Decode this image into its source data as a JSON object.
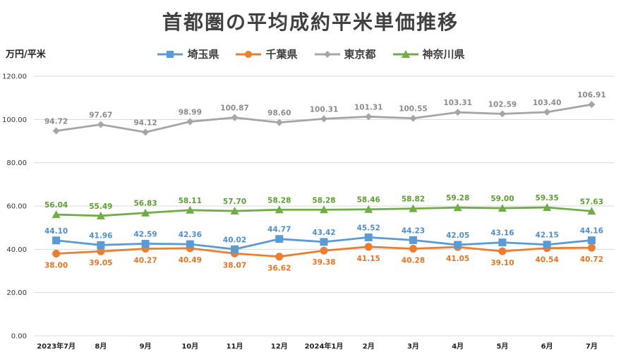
{
  "chart_data": {
    "type": "line",
    "title": "首都圏の平均成約平米単価推移",
    "ylabel": "万円/平米",
    "xlabel": "",
    "ylim": [
      0,
      120
    ],
    "yticks": [
      "0.00",
      "20.00",
      "40.00",
      "60.00",
      "80.00",
      "100.00",
      "120.00"
    ],
    "grid": "horizontal",
    "legend": "top",
    "categories": [
      "2023年7月",
      "8月",
      "9月",
      "10月",
      "11月",
      "12月",
      "2024年1月",
      "2月",
      "3月",
      "4月",
      "5月",
      "6月",
      "7月"
    ],
    "series": [
      {
        "name": "埼玉県",
        "color": "#5B9BD5",
        "marker": "square",
        "label_pos": "above",
        "values": [
          44.1,
          41.96,
          42.59,
          42.36,
          40.02,
          44.77,
          43.42,
          45.52,
          44.23,
          42.05,
          43.16,
          42.15,
          44.16
        ],
        "labels": [
          "44.10",
          "41.96",
          "42.59",
          "42.36",
          "40.02",
          "44.77",
          "43.42",
          "45.52",
          "44.23",
          "42.05",
          "43.16",
          "42.15",
          "44.16"
        ]
      },
      {
        "name": "千葉県",
        "color": "#ED7D31",
        "marker": "circle",
        "label_pos": "below",
        "values": [
          38.0,
          39.05,
          40.27,
          40.49,
          38.07,
          36.62,
          39.38,
          41.15,
          40.28,
          41.05,
          39.1,
          40.54,
          40.72
        ],
        "labels": [
          "38.00",
          "39.05",
          "40.27",
          "40.49",
          "38.07",
          "36.62",
          "39.38",
          "41.15",
          "40.28",
          "41.05",
          "39.10",
          "40.54",
          "40.72"
        ]
      },
      {
        "name": "東京都",
        "color": "#A5A5A5",
        "marker": "diamond",
        "label_pos": "above",
        "values": [
          94.72,
          97.67,
          94.12,
          98.99,
          100.87,
          98.6,
          100.31,
          101.31,
          100.55,
          103.31,
          102.59,
          103.4,
          106.91
        ],
        "labels": [
          "94.72",
          "97.67",
          "94.12",
          "98.99",
          "100.87",
          "98.60",
          "100.31",
          "101.31",
          "100.55",
          "103.31",
          "102.59",
          "103.40",
          "106.91"
        ]
      },
      {
        "name": "神奈川県",
        "color": "#70AD47",
        "marker": "triangle",
        "label_pos": "above",
        "values": [
          56.04,
          55.49,
          56.83,
          58.11,
          57.7,
          58.28,
          58.28,
          58.46,
          58.82,
          59.28,
          59.0,
          59.35,
          57.63
        ],
        "labels": [
          "56.04",
          "55.49",
          "56.83",
          "58.11",
          "57.70",
          "58.28",
          "58.28",
          "58.46",
          "58.82",
          "59.28",
          "59.00",
          "59.35",
          "57.63"
        ]
      }
    ]
  },
  "colors": {
    "label_gray": "#8C8C8C",
    "label_green": "#5E9E34",
    "label_blue": "#4F8FD0",
    "label_orange": "#E37626"
  }
}
